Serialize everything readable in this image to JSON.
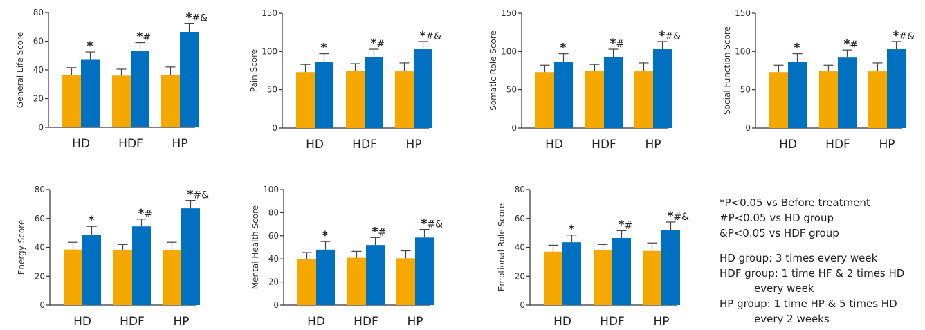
{
  "colors": {
    "before": "#F5A800",
    "after": "#0070C0",
    "axis": "#333333"
  },
  "chart_data": [
    {
      "type": "bar",
      "ylabel": "General Life Score",
      "categories": [
        "HD",
        "HDF",
        "HP"
      ],
      "ylim": [
        0,
        80
      ],
      "yticks": [
        0,
        20,
        40,
        60,
        80
      ],
      "series": [
        {
          "values": [
            36.5,
            36,
            36.5
          ],
          "errors": [
            5,
            4.5,
            5.5
          ]
        },
        {
          "values": [
            47,
            53.5,
            66.5
          ],
          "errors": [
            5.5,
            5.5,
            6
          ]
        }
      ],
      "annotations": [
        "*",
        "*#",
        "*#&"
      ]
    },
    {
      "type": "bar",
      "ylabel": "Pain Score",
      "categories": [
        "HD",
        "HDF",
        "HP"
      ],
      "ylim": [
        0,
        150
      ],
      "yticks": [
        0,
        50,
        100,
        150
      ],
      "series": [
        {
          "values": [
            73,
            75,
            74
          ],
          "errors": [
            10,
            9,
            11
          ]
        },
        {
          "values": [
            86,
            93,
            103
          ],
          "errors": [
            11,
            10,
            10
          ]
        }
      ],
      "annotations": [
        "*",
        "*#",
        "*#&"
      ]
    },
    {
      "type": "bar",
      "ylabel": "Somatic Role Score",
      "categories": [
        "HD",
        "HDF",
        "HP"
      ],
      "ylim": [
        0,
        150
      ],
      "yticks": [
        0,
        50,
        100,
        150
      ],
      "series": [
        {
          "values": [
            73,
            75,
            74
          ],
          "errors": [
            9,
            8,
            11
          ]
        },
        {
          "values": [
            86,
            93,
            103
          ],
          "errors": [
            11,
            10,
            10
          ]
        }
      ],
      "annotations": [
        "*",
        "*#",
        "*#&"
      ]
    },
    {
      "type": "bar",
      "ylabel": "Social Function Score",
      "categories": [
        "HD",
        "HDF",
        "HP"
      ],
      "ylim": [
        0,
        150
      ],
      "yticks": [
        0,
        50,
        100,
        150
      ],
      "series": [
        {
          "values": [
            73,
            74,
            74
          ],
          "errors": [
            9,
            8,
            11
          ]
        },
        {
          "values": [
            86,
            92,
            103
          ],
          "errors": [
            11,
            10,
            10
          ]
        }
      ],
      "annotations": [
        "*",
        "*#",
        "*#&"
      ]
    },
    {
      "type": "bar",
      "ylabel": "Energy Score",
      "categories": [
        "HD",
        "HDF",
        "HP"
      ],
      "ylim": [
        0,
        80
      ],
      "yticks": [
        0,
        20,
        40,
        60,
        80
      ],
      "series": [
        {
          "values": [
            38.5,
            38,
            38
          ],
          "errors": [
            5,
            4,
            5.5
          ]
        },
        {
          "values": [
            48.5,
            54.5,
            67
          ],
          "errors": [
            6,
            5,
            5.5
          ]
        }
      ],
      "annotations": [
        "*",
        "*#",
        "*#&"
      ]
    },
    {
      "type": "bar",
      "ylabel": "Mental Health Score",
      "categories": [
        "HD",
        "HDF",
        "HP"
      ],
      "ylim": [
        0,
        100
      ],
      "yticks": [
        0,
        20,
        40,
        60,
        80,
        100
      ],
      "series": [
        {
          "values": [
            40,
            41,
            40.5
          ],
          "errors": [
            5.5,
            5.5,
            6.5
          ]
        },
        {
          "values": [
            48,
            52,
            58.5
          ],
          "errors": [
            7,
            6.5,
            7
          ]
        }
      ],
      "annotations": [
        "*",
        "*#",
        "*#&"
      ]
    },
    {
      "type": "bar",
      "ylabel": "Emotional Role Score",
      "categories": [
        "HD",
        "HDF",
        "HP"
      ],
      "ylim": [
        0,
        80
      ],
      "yticks": [
        0,
        20,
        40,
        60,
        80
      ],
      "series": [
        {
          "values": [
            37,
            38,
            37.5
          ],
          "errors": [
            4.5,
            4,
            5.5
          ]
        },
        {
          "values": [
            43.5,
            46.5,
            52
          ],
          "errors": [
            5,
            5,
            5.5
          ]
        }
      ],
      "annotations": [
        "*",
        "*#",
        "*#&"
      ]
    }
  ],
  "legend": {
    "sig1": "*P<0.05 vs Before treatment",
    "sig2": "#P<0.05 vs HD group",
    "sig3": "&P<0.05 vs HDF group",
    "hd": "HD group: 3 times every week",
    "hdf_1": "HDF group: 1 time HF & 2 times HD",
    "hdf_2": "every week",
    "hp_1": "HP group: 1 time HP & 5 times HD",
    "hp_2": "every 2 weeks"
  }
}
